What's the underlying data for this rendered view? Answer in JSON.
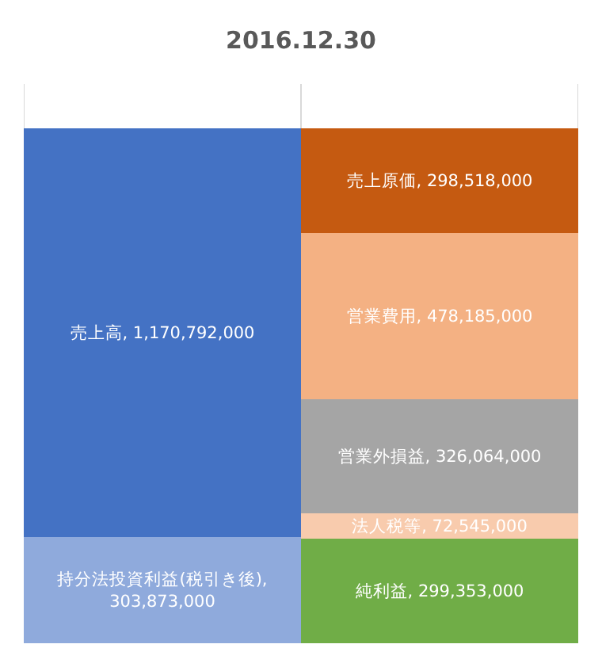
{
  "chart_data": {
    "type": "bar",
    "title": "2016.12.30",
    "categories": [
      null,
      null
    ],
    "stacked": true,
    "data_labels": true,
    "grid": "x",
    "legend": false,
    "ylim": [
      0,
      1600000000
    ],
    "tick_labels": false,
    "series": [
      {
        "name": "持分法投資利益(税引き後),",
        "color": "#8faadc",
        "values": [
          303873000,
          null
        ],
        "value_labels": [
          "303,873,000",
          null
        ]
      },
      {
        "name": "売上高,",
        "color": "#4472c4",
        "values": [
          1170792000,
          null
        ],
        "value_labels": [
          "1,170,792,000",
          null
        ]
      },
      {
        "name": "純利益,",
        "color": "#70ad47",
        "values": [
          null,
          299353000
        ],
        "value_labels": [
          null,
          "299,353,000"
        ]
      },
      {
        "name": "法人税等,",
        "color": "#f8cbad",
        "values": [
          null,
          72545000
        ],
        "value_labels": [
          null,
          "72,545,000"
        ]
      },
      {
        "name": "営業外損益,",
        "color": "#a5a5a5",
        "values": [
          null,
          326064000
        ],
        "value_labels": [
          null,
          "326,064,000"
        ]
      },
      {
        "name": "営業費用,",
        "color": "#f4b183",
        "values": [
          null,
          478185000
        ],
        "value_labels": [
          null,
          "478,185,000"
        ]
      },
      {
        "name": "売上原価,",
        "color": "#c55a11",
        "values": [
          null,
          298518000
        ],
        "value_labels": [
          null,
          "298,518,000"
        ]
      }
    ]
  }
}
